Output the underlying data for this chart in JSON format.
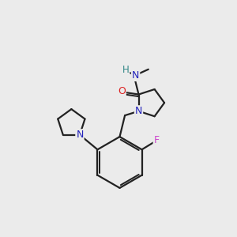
{
  "background_color": "#ebebeb",
  "atom_color_N": "#2222bb",
  "atom_color_O": "#dd2222",
  "atom_color_F": "#cc44cc",
  "atom_color_H": "#338888",
  "bond_color": "#222222",
  "bond_width": 1.6,
  "figsize": [
    3.0,
    3.0
  ],
  "dpi": 100,
  "xlim": [
    0,
    10
  ],
  "ylim": [
    0,
    10
  ]
}
